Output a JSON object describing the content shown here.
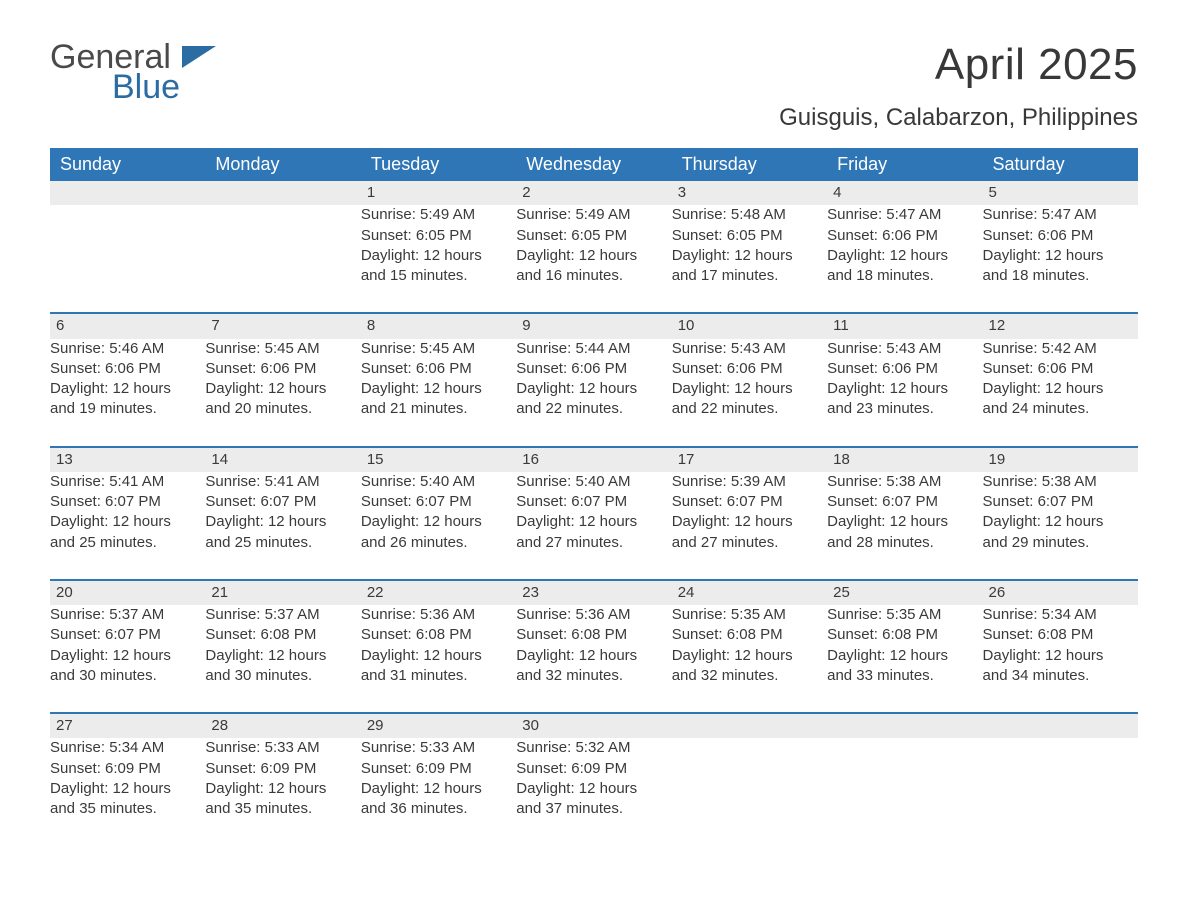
{
  "logo": {
    "general": "General",
    "blue": "Blue"
  },
  "title": "April 2025",
  "location": "Guisguis, Calabarzon, Philippines",
  "colors": {
    "header_bg": "#2f76b6",
    "header_text": "#ffffff",
    "daynum_bg": "#ececec",
    "row_border": "#2f76b6",
    "body_text": "#3a3a3a",
    "logo_gray": "#4a4a4a",
    "logo_blue": "#2b6ca3",
    "page_bg": "#ffffff"
  },
  "day_headers": [
    "Sunday",
    "Monday",
    "Tuesday",
    "Wednesday",
    "Thursday",
    "Friday",
    "Saturday"
  ],
  "weeks": [
    [
      null,
      null,
      {
        "n": "1",
        "sr": "Sunrise: 5:49 AM",
        "ss": "Sunset: 6:05 PM",
        "d1": "Daylight: 12 hours",
        "d2": "and 15 minutes."
      },
      {
        "n": "2",
        "sr": "Sunrise: 5:49 AM",
        "ss": "Sunset: 6:05 PM",
        "d1": "Daylight: 12 hours",
        "d2": "and 16 minutes."
      },
      {
        "n": "3",
        "sr": "Sunrise: 5:48 AM",
        "ss": "Sunset: 6:05 PM",
        "d1": "Daylight: 12 hours",
        "d2": "and 17 minutes."
      },
      {
        "n": "4",
        "sr": "Sunrise: 5:47 AM",
        "ss": "Sunset: 6:06 PM",
        "d1": "Daylight: 12 hours",
        "d2": "and 18 minutes."
      },
      {
        "n": "5",
        "sr": "Sunrise: 5:47 AM",
        "ss": "Sunset: 6:06 PM",
        "d1": "Daylight: 12 hours",
        "d2": "and 18 minutes."
      }
    ],
    [
      {
        "n": "6",
        "sr": "Sunrise: 5:46 AM",
        "ss": "Sunset: 6:06 PM",
        "d1": "Daylight: 12 hours",
        "d2": "and 19 minutes."
      },
      {
        "n": "7",
        "sr": "Sunrise: 5:45 AM",
        "ss": "Sunset: 6:06 PM",
        "d1": "Daylight: 12 hours",
        "d2": "and 20 minutes."
      },
      {
        "n": "8",
        "sr": "Sunrise: 5:45 AM",
        "ss": "Sunset: 6:06 PM",
        "d1": "Daylight: 12 hours",
        "d2": "and 21 minutes."
      },
      {
        "n": "9",
        "sr": "Sunrise: 5:44 AM",
        "ss": "Sunset: 6:06 PM",
        "d1": "Daylight: 12 hours",
        "d2": "and 22 minutes."
      },
      {
        "n": "10",
        "sr": "Sunrise: 5:43 AM",
        "ss": "Sunset: 6:06 PM",
        "d1": "Daylight: 12 hours",
        "d2": "and 22 minutes."
      },
      {
        "n": "11",
        "sr": "Sunrise: 5:43 AM",
        "ss": "Sunset: 6:06 PM",
        "d1": "Daylight: 12 hours",
        "d2": "and 23 minutes."
      },
      {
        "n": "12",
        "sr": "Sunrise: 5:42 AM",
        "ss": "Sunset: 6:06 PM",
        "d1": "Daylight: 12 hours",
        "d2": "and 24 minutes."
      }
    ],
    [
      {
        "n": "13",
        "sr": "Sunrise: 5:41 AM",
        "ss": "Sunset: 6:07 PM",
        "d1": "Daylight: 12 hours",
        "d2": "and 25 minutes."
      },
      {
        "n": "14",
        "sr": "Sunrise: 5:41 AM",
        "ss": "Sunset: 6:07 PM",
        "d1": "Daylight: 12 hours",
        "d2": "and 25 minutes."
      },
      {
        "n": "15",
        "sr": "Sunrise: 5:40 AM",
        "ss": "Sunset: 6:07 PM",
        "d1": "Daylight: 12 hours",
        "d2": "and 26 minutes."
      },
      {
        "n": "16",
        "sr": "Sunrise: 5:40 AM",
        "ss": "Sunset: 6:07 PM",
        "d1": "Daylight: 12 hours",
        "d2": "and 27 minutes."
      },
      {
        "n": "17",
        "sr": "Sunrise: 5:39 AM",
        "ss": "Sunset: 6:07 PM",
        "d1": "Daylight: 12 hours",
        "d2": "and 27 minutes."
      },
      {
        "n": "18",
        "sr": "Sunrise: 5:38 AM",
        "ss": "Sunset: 6:07 PM",
        "d1": "Daylight: 12 hours",
        "d2": "and 28 minutes."
      },
      {
        "n": "19",
        "sr": "Sunrise: 5:38 AM",
        "ss": "Sunset: 6:07 PM",
        "d1": "Daylight: 12 hours",
        "d2": "and 29 minutes."
      }
    ],
    [
      {
        "n": "20",
        "sr": "Sunrise: 5:37 AM",
        "ss": "Sunset: 6:07 PM",
        "d1": "Daylight: 12 hours",
        "d2": "and 30 minutes."
      },
      {
        "n": "21",
        "sr": "Sunrise: 5:37 AM",
        "ss": "Sunset: 6:08 PM",
        "d1": "Daylight: 12 hours",
        "d2": "and 30 minutes."
      },
      {
        "n": "22",
        "sr": "Sunrise: 5:36 AM",
        "ss": "Sunset: 6:08 PM",
        "d1": "Daylight: 12 hours",
        "d2": "and 31 minutes."
      },
      {
        "n": "23",
        "sr": "Sunrise: 5:36 AM",
        "ss": "Sunset: 6:08 PM",
        "d1": "Daylight: 12 hours",
        "d2": "and 32 minutes."
      },
      {
        "n": "24",
        "sr": "Sunrise: 5:35 AM",
        "ss": "Sunset: 6:08 PM",
        "d1": "Daylight: 12 hours",
        "d2": "and 32 minutes."
      },
      {
        "n": "25",
        "sr": "Sunrise: 5:35 AM",
        "ss": "Sunset: 6:08 PM",
        "d1": "Daylight: 12 hours",
        "d2": "and 33 minutes."
      },
      {
        "n": "26",
        "sr": "Sunrise: 5:34 AM",
        "ss": "Sunset: 6:08 PM",
        "d1": "Daylight: 12 hours",
        "d2": "and 34 minutes."
      }
    ],
    [
      {
        "n": "27",
        "sr": "Sunrise: 5:34 AM",
        "ss": "Sunset: 6:09 PM",
        "d1": "Daylight: 12 hours",
        "d2": "and 35 minutes."
      },
      {
        "n": "28",
        "sr": "Sunrise: 5:33 AM",
        "ss": "Sunset: 6:09 PM",
        "d1": "Daylight: 12 hours",
        "d2": "and 35 minutes."
      },
      {
        "n": "29",
        "sr": "Sunrise: 5:33 AM",
        "ss": "Sunset: 6:09 PM",
        "d1": "Daylight: 12 hours",
        "d2": "and 36 minutes."
      },
      {
        "n": "30",
        "sr": "Sunrise: 5:32 AM",
        "ss": "Sunset: 6:09 PM",
        "d1": "Daylight: 12 hours",
        "d2": "and 37 minutes."
      },
      null,
      null,
      null
    ]
  ]
}
